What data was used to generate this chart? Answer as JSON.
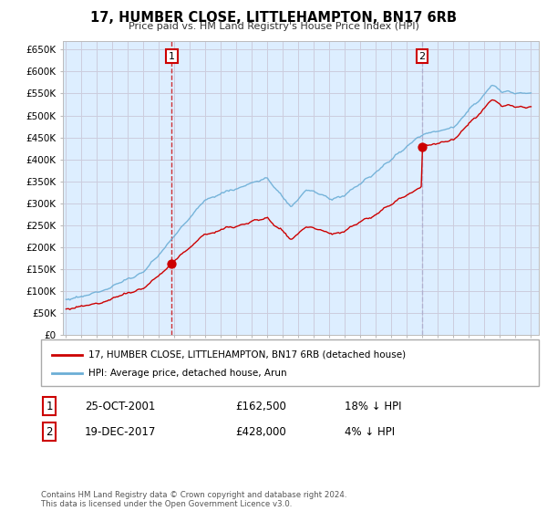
{
  "title": "17, HUMBER CLOSE, LITTLEHAMPTON, BN17 6RB",
  "subtitle": "Price paid vs. HM Land Registry's House Price Index (HPI)",
  "ylim": [
    0,
    670000
  ],
  "yticks": [
    0,
    50000,
    100000,
    150000,
    200000,
    250000,
    300000,
    350000,
    400000,
    450000,
    500000,
    550000,
    600000,
    650000
  ],
  "ytick_labels": [
    "£0",
    "£50K",
    "£100K",
    "£150K",
    "£200K",
    "£250K",
    "£300K",
    "£350K",
    "£400K",
    "£450K",
    "£500K",
    "£550K",
    "£600K",
    "£650K"
  ],
  "hpi_color": "#6baed6",
  "price_color": "#cc0000",
  "vline1_color": "#cc0000",
  "vline1_style": "--",
  "vline2_color": "#aaaacc",
  "vline2_style": "--",
  "plot_bg_color": "#ddeeff",
  "transaction1": {
    "year": 2001.82,
    "price": 162500,
    "label": "1",
    "date": "25-OCT-2001",
    "price_str": "£162,500",
    "pct": "18% ↓ HPI"
  },
  "transaction2": {
    "year": 2017.97,
    "price": 428000,
    "label": "2",
    "date": "19-DEC-2017",
    "price_str": "£428,000",
    "pct": "4% ↓ HPI"
  },
  "legend_price_label": "17, HUMBER CLOSE, LITTLEHAMPTON, BN17 6RB (detached house)",
  "legend_hpi_label": "HPI: Average price, detached house, Arun",
  "footer": "Contains HM Land Registry data © Crown copyright and database right 2024.\nThis data is licensed under the Open Government Licence v3.0.",
  "background_color": "#ffffff",
  "grid_color": "#ccccdd",
  "xlim_left": 1994.8,
  "xlim_right": 2025.5
}
